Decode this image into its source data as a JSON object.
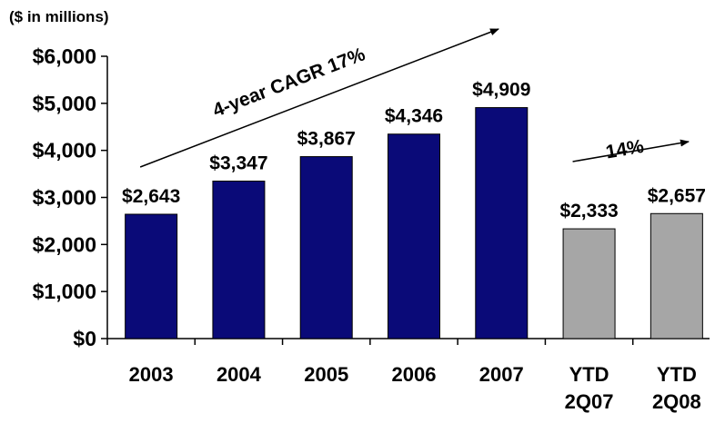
{
  "chart_data": {
    "type": "bar",
    "unit_note": "($ in millions)",
    "categories": [
      "2003",
      "2004",
      "2005",
      "2006",
      "2007",
      "YTD\n2Q07",
      "YTD\n2Q08"
    ],
    "values": [
      2643,
      3347,
      3867,
      4346,
      4909,
      2333,
      2657
    ],
    "value_labels": [
      "$2,643",
      "$3,347",
      "$3,867",
      "$4,346",
      "$4,909",
      "$2,333",
      "$2,657"
    ],
    "bar_colors": [
      "#0a0a78",
      "#0a0a78",
      "#0a0a78",
      "#0a0a78",
      "#0a0a78",
      "#a6a6a6",
      "#a6a6a6"
    ],
    "ylim": [
      0,
      6000
    ],
    "yticks": [
      {
        "value": 0,
        "label": "$0"
      },
      {
        "value": 1000,
        "label": "$1,000"
      },
      {
        "value": 2000,
        "label": "$2,000"
      },
      {
        "value": 3000,
        "label": "$3,000"
      },
      {
        "value": 4000,
        "label": "$4,000"
      },
      {
        "value": 5000,
        "label": "$5,000"
      },
      {
        "value": 6000,
        "label": "$6,000"
      }
    ],
    "annotations": [
      {
        "text": "4-year CAGR 17%",
        "from_category": 0,
        "to_category": 4
      },
      {
        "text": "14%",
        "from_category": 5,
        "to_category": 6
      }
    ],
    "grid": false,
    "legend": "none"
  }
}
